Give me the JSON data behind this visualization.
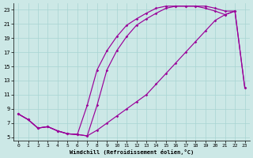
{
  "xlabel": "Windchill (Refroidissement éolien,°C)",
  "bg_color": "#cce8e6",
  "grid_color": "#a8d4d2",
  "line_color": "#990099",
  "xlim_min": -0.5,
  "xlim_max": 23.5,
  "ylim_min": 4.5,
  "ylim_max": 23.9,
  "xticks": [
    0,
    1,
    2,
    3,
    4,
    5,
    6,
    7,
    8,
    9,
    10,
    11,
    12,
    13,
    14,
    15,
    16,
    17,
    18,
    19,
    20,
    21,
    22,
    23
  ],
  "yticks": [
    5,
    7,
    9,
    11,
    13,
    15,
    17,
    19,
    21,
    23
  ],
  "curve1_x": [
    0,
    1,
    2,
    3,
    4,
    5,
    6,
    7,
    8,
    9,
    10,
    11,
    12,
    13,
    14,
    15,
    16,
    17,
    18,
    19,
    20,
    21,
    22
  ],
  "curve1_y": [
    8.3,
    7.5,
    6.3,
    6.5,
    5.9,
    5.5,
    5.4,
    9.5,
    14.5,
    17.2,
    19.2,
    20.8,
    21.7,
    22.5,
    23.2,
    23.5,
    23.5,
    23.5,
    23.5,
    23.5,
    23.2,
    22.8,
    22.8
  ],
  "curve2_x": [
    0,
    1,
    2,
    3,
    4,
    5,
    6,
    7,
    8,
    9,
    10,
    11,
    12,
    13,
    14,
    15,
    16,
    17,
    18,
    19,
    20,
    21,
    22,
    23
  ],
  "curve2_y": [
    8.3,
    7.5,
    6.3,
    6.5,
    5.9,
    5.5,
    5.4,
    5.2,
    6.0,
    7.0,
    8.0,
    9.0,
    10.0,
    11.0,
    12.5,
    14.0,
    15.5,
    17.0,
    18.5,
    20.0,
    21.5,
    22.3,
    22.8,
    12.0
  ],
  "curve3_x": [
    0,
    1,
    2,
    3,
    4,
    5,
    6,
    7,
    8,
    9,
    10,
    11,
    12,
    13,
    14,
    15,
    16,
    17,
    18,
    19,
    20,
    21,
    22,
    23
  ],
  "curve3_y": [
    8.3,
    7.5,
    6.3,
    6.5,
    5.9,
    5.5,
    5.4,
    5.2,
    9.5,
    14.5,
    17.2,
    19.2,
    20.8,
    21.7,
    22.5,
    23.2,
    23.5,
    23.5,
    23.5,
    23.2,
    22.8,
    22.3,
    22.8,
    12.0
  ],
  "marker_style": "D",
  "marker_size": 1.8,
  "line_width": 0.85,
  "tick_fontsize": 4.5,
  "xlabel_fontsize": 5.0
}
